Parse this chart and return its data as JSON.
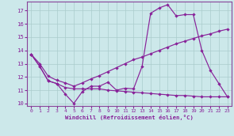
{
  "xlabel": "Windchill (Refroidissement éolien,°C)",
  "bg_color": "#cce8ea",
  "grid_color": "#aacccc",
  "line_color": "#882299",
  "spine_color": "#884499",
  "xlim": [
    -0.5,
    23.5
  ],
  "ylim": [
    9.8,
    17.7
  ],
  "xticks": [
    0,
    1,
    2,
    3,
    4,
    5,
    6,
    7,
    8,
    9,
    10,
    11,
    12,
    13,
    14,
    15,
    16,
    17,
    18,
    19,
    20,
    21,
    22,
    23
  ],
  "yticks": [
    10,
    11,
    12,
    13,
    14,
    15,
    16,
    17
  ],
  "line_a_x": [
    0,
    1,
    2,
    3,
    4,
    5,
    6,
    7,
    8,
    9,
    10,
    11,
    12,
    13,
    14,
    15,
    16,
    17,
    18,
    19,
    20,
    21,
    22,
    23
  ],
  "line_a_y": [
    13.7,
    12.8,
    11.7,
    11.5,
    10.7,
    10.0,
    10.9,
    11.3,
    11.3,
    11.6,
    11.0,
    11.15,
    11.1,
    12.8,
    16.8,
    17.2,
    17.45,
    16.6,
    16.7,
    16.7,
    14.0,
    12.5,
    11.5,
    10.5
  ],
  "line_b_x": [
    0,
    1,
    2,
    3,
    4,
    5,
    6,
    7,
    8,
    9,
    10,
    11,
    12,
    13,
    14,
    15,
    16,
    17,
    18,
    19,
    20,
    21,
    22,
    23
  ],
  "line_b_y": [
    13.7,
    13.0,
    12.05,
    11.75,
    11.55,
    11.3,
    11.55,
    11.85,
    12.1,
    12.4,
    12.7,
    13.0,
    13.3,
    13.5,
    13.75,
    14.0,
    14.25,
    14.5,
    14.7,
    14.9,
    15.1,
    15.25,
    15.45,
    15.6
  ],
  "line_c_x": [
    0,
    1,
    2,
    3,
    4,
    5,
    6,
    7,
    8,
    9,
    10,
    11,
    12,
    13,
    14,
    15,
    16,
    17,
    18,
    19,
    20,
    21,
    22,
    23
  ],
  "line_c_y": [
    13.7,
    12.8,
    11.7,
    11.5,
    11.2,
    11.1,
    11.1,
    11.1,
    11.1,
    11.0,
    10.95,
    10.9,
    10.85,
    10.8,
    10.75,
    10.7,
    10.65,
    10.6,
    10.6,
    10.55,
    10.5,
    10.5,
    10.5,
    10.5
  ]
}
